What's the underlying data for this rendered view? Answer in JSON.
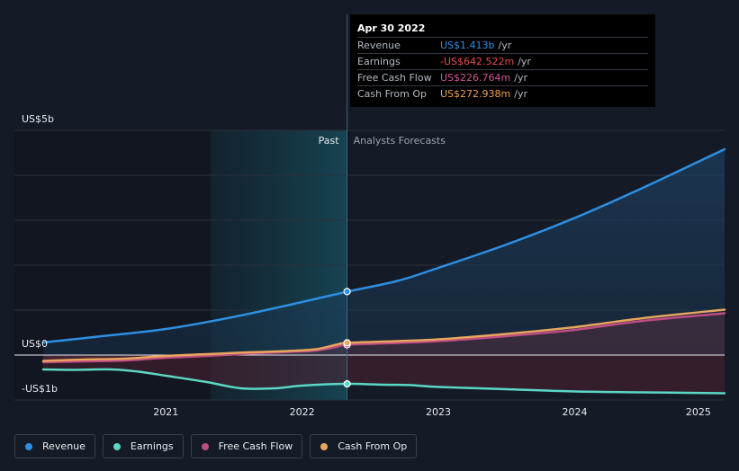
{
  "chart_data": {
    "type": "line",
    "y_axis": {
      "min": -1,
      "max": 5,
      "unit": "US$b",
      "tick_labels": [
        "US$5b",
        "US$0",
        "-US$1b"
      ]
    },
    "x_axis": {
      "min": 2020.1,
      "max": 2025.1,
      "tick_labels": [
        "2021",
        "2022",
        "2023",
        "2024",
        "2025"
      ],
      "tick_values": [
        2021,
        2022,
        2023,
        2024,
        2025
      ]
    },
    "regions": {
      "past_label": "Past",
      "forecast_label": "Analysts Forecasts",
      "divider_x": 2022.33,
      "highlight_start": 2021.33
    },
    "series": [
      {
        "name": "Revenue",
        "color": "#2d8fe3",
        "points": [
          [
            2020.1,
            0.28
          ],
          [
            2020.5,
            0.41
          ],
          [
            2021.0,
            0.58
          ],
          [
            2021.5,
            0.85
          ],
          [
            2022.0,
            1.18
          ],
          [
            2022.33,
            1.41
          ],
          [
            2022.7,
            1.65
          ],
          [
            2023.0,
            1.94
          ],
          [
            2023.5,
            2.46
          ],
          [
            2024.0,
            3.05
          ],
          [
            2024.5,
            3.72
          ],
          [
            2025.1,
            4.58
          ]
        ]
      },
      {
        "name": "Earnings",
        "color": "#5ad7c5",
        "points": [
          [
            2020.1,
            -0.32
          ],
          [
            2020.3,
            -0.33
          ],
          [
            2020.6,
            -0.32
          ],
          [
            2020.8,
            -0.37
          ],
          [
            2021.0,
            -0.46
          ],
          [
            2021.3,
            -0.6
          ],
          [
            2021.55,
            -0.74
          ],
          [
            2021.8,
            -0.74
          ],
          [
            2022.0,
            -0.68
          ],
          [
            2022.33,
            -0.64
          ],
          [
            2022.6,
            -0.66
          ],
          [
            2022.8,
            -0.67
          ],
          [
            2023.0,
            -0.71
          ],
          [
            2023.5,
            -0.76
          ],
          [
            2024.0,
            -0.81
          ],
          [
            2024.5,
            -0.83
          ],
          [
            2025.1,
            -0.85
          ]
        ]
      },
      {
        "name": "Free Cash Flow",
        "color": "#c04c85",
        "points": [
          [
            2020.1,
            -0.16
          ],
          [
            2020.4,
            -0.14
          ],
          [
            2020.7,
            -0.12
          ],
          [
            2021.0,
            -0.06
          ],
          [
            2021.3,
            -0.02
          ],
          [
            2021.6,
            0.03
          ],
          [
            2021.9,
            0.07
          ],
          [
            2022.1,
            0.1
          ],
          [
            2022.25,
            0.18
          ],
          [
            2022.33,
            0.23
          ],
          [
            2022.7,
            0.27
          ],
          [
            2023.0,
            0.31
          ],
          [
            2023.5,
            0.42
          ],
          [
            2024.0,
            0.56
          ],
          [
            2024.5,
            0.76
          ],
          [
            2025.1,
            0.93
          ]
        ]
      },
      {
        "name": "Cash From Op",
        "color": "#e8a55c",
        "points": [
          [
            2020.1,
            -0.13
          ],
          [
            2020.4,
            -0.1
          ],
          [
            2020.7,
            -0.08
          ],
          [
            2021.0,
            -0.02
          ],
          [
            2021.3,
            0.02
          ],
          [
            2021.6,
            0.06
          ],
          [
            2021.9,
            0.09
          ],
          [
            2022.1,
            0.13
          ],
          [
            2022.25,
            0.23
          ],
          [
            2022.33,
            0.27
          ],
          [
            2022.7,
            0.31
          ],
          [
            2023.0,
            0.35
          ],
          [
            2023.5,
            0.47
          ],
          [
            2024.0,
            0.62
          ],
          [
            2024.5,
            0.82
          ],
          [
            2025.1,
            1.01
          ]
        ]
      }
    ],
    "highlight": {
      "x": 2022.33,
      "values": {
        "Revenue": 1.413,
        "Earnings": -0.642522,
        "Free Cash Flow": 0.226764,
        "Cash From Op": 0.272938
      }
    }
  },
  "tooltip": {
    "date": "Apr 30 2022",
    "unit": "/yr",
    "rows": [
      {
        "label": "Revenue",
        "value": "US$1.413b",
        "color": "#2d8fe3"
      },
      {
        "label": "Earnings",
        "value": "-US$642.522m",
        "color": "#e84a4a"
      },
      {
        "label": "Free Cash Flow",
        "value": "US$226.764m",
        "color": "#d25596"
      },
      {
        "label": "Cash From Op",
        "value": "US$272.938m",
        "color": "#eba24e"
      }
    ]
  },
  "legend": [
    {
      "label": "Revenue",
      "color": "#2d8fe3"
    },
    {
      "label": "Earnings",
      "color": "#5ad7c5"
    },
    {
      "label": "Free Cash Flow",
      "color": "#c04c85"
    },
    {
      "label": "Cash From Op",
      "color": "#e8a55c"
    }
  ]
}
